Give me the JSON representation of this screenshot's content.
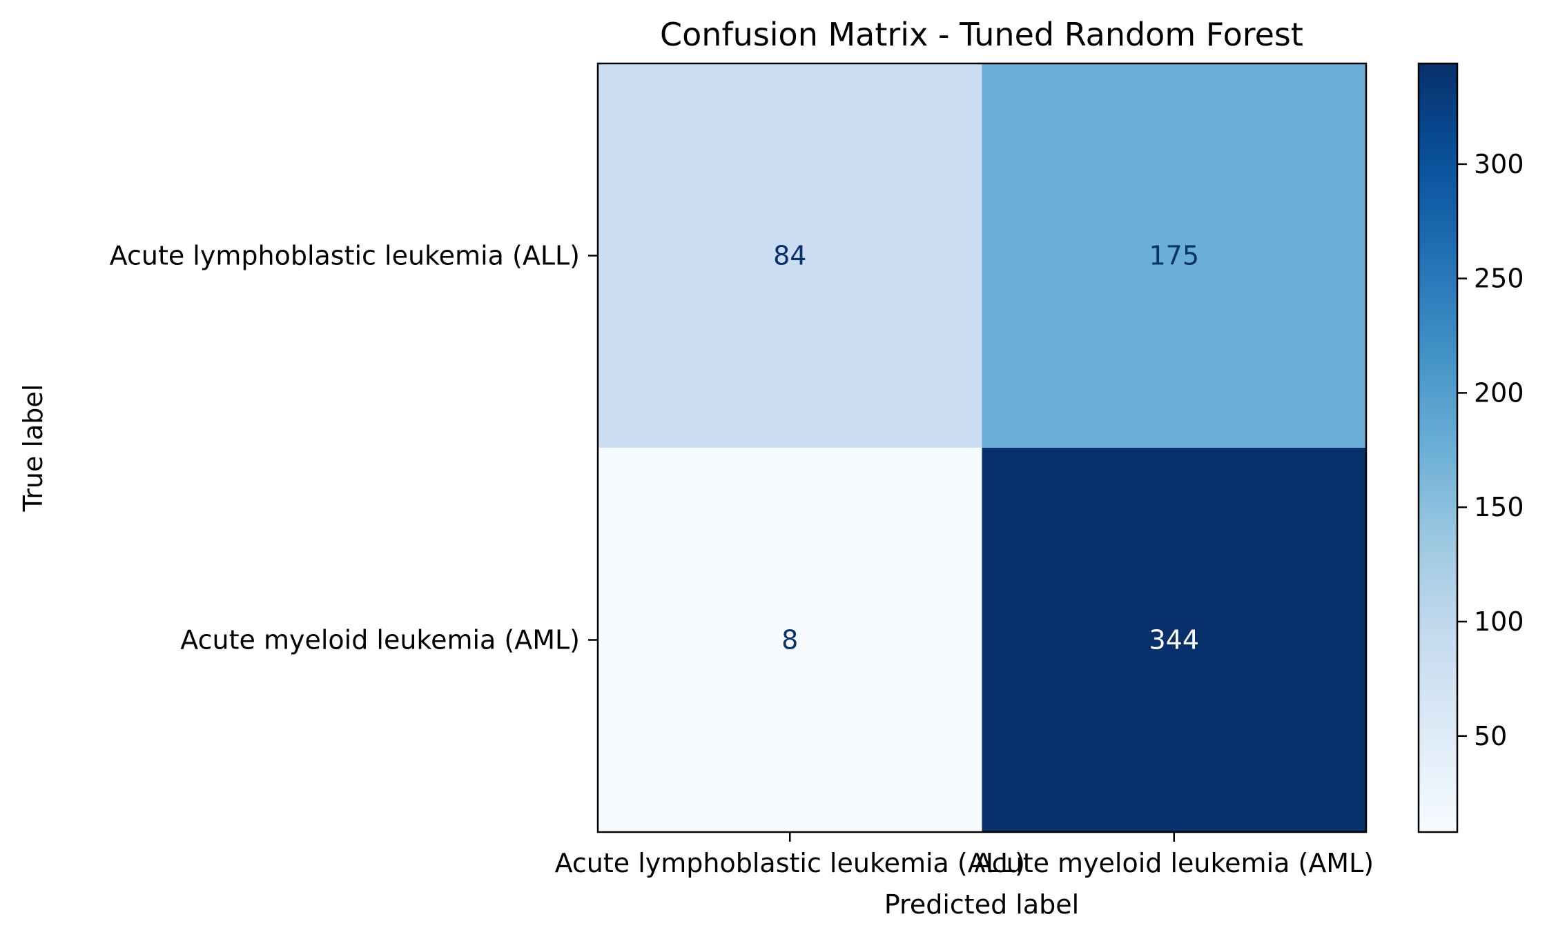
{
  "chart_data": {
    "type": "heatmap",
    "title": "Confusion Matrix - Tuned Random Forest",
    "xlabel": "Predicted label",
    "ylabel": "True label",
    "row_labels": [
      "Acute lymphoblastic leukemia (ALL)",
      "Acute myeloid leukemia (AML)"
    ],
    "col_labels": [
      "Acute lymphoblastic leukemia (ALL)",
      "Acute myeloid leukemia (AML)"
    ],
    "values": [
      [
        84,
        175
      ],
      [
        8,
        344
      ]
    ],
    "colormap": "Blues",
    "color_range": [
      8,
      344
    ],
    "colorbar": {
      "ticks": [
        50,
        100,
        150,
        200,
        250,
        300
      ],
      "tick_labels": [
        "50",
        "100",
        "150",
        "200",
        "250",
        "300"
      ]
    },
    "grid": false
  }
}
